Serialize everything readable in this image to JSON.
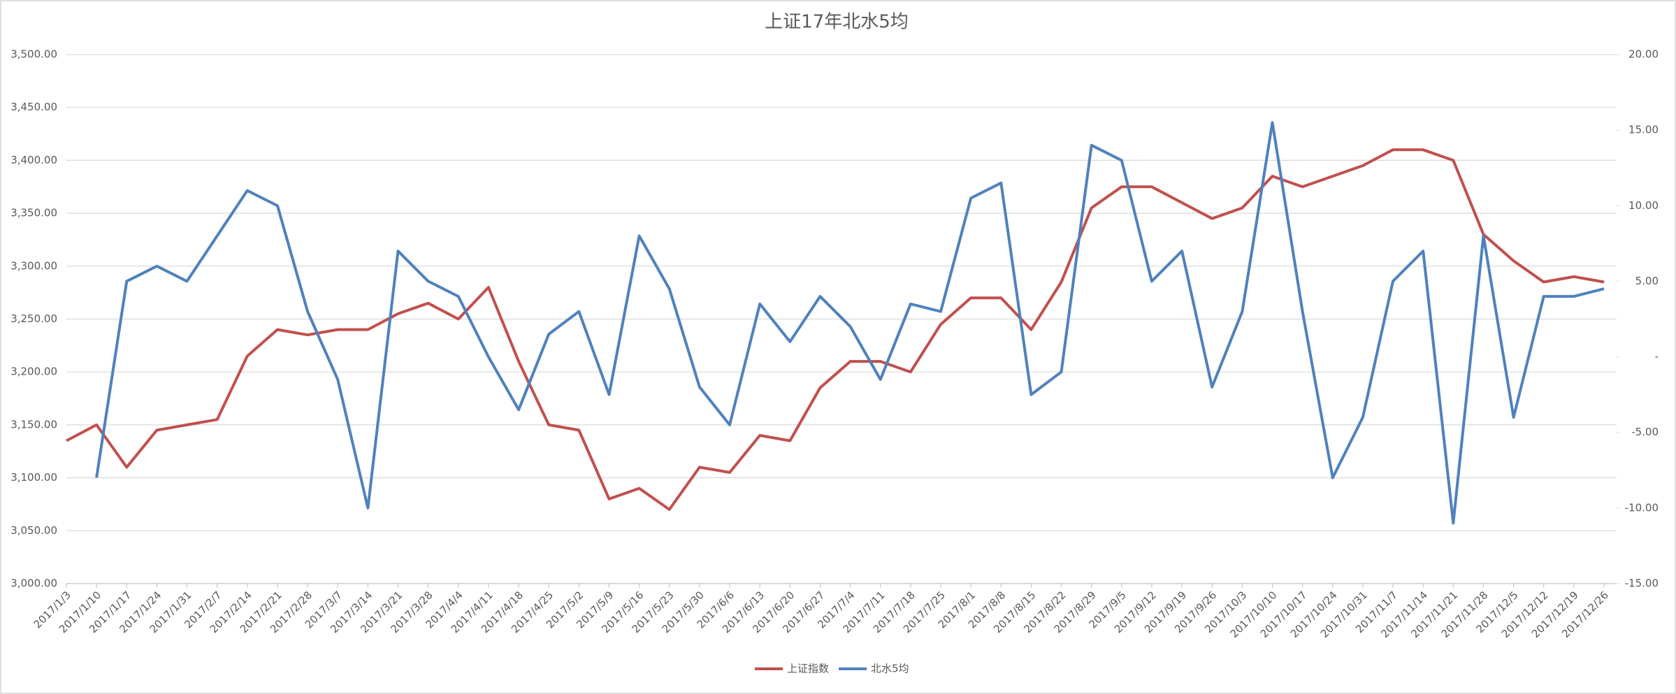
{
  "chart_data": {
    "type": "line",
    "title": "上证17年北水5均",
    "categories": [
      "2017/1/3",
      "2017/1/10",
      "2017/1/17",
      "2017/1/24",
      "2017/1/31",
      "2017/2/7",
      "2017/2/14",
      "2017/2/21",
      "2017/2/28",
      "2017/3/7",
      "2017/3/14",
      "2017/3/21",
      "2017/3/28",
      "2017/4/4",
      "2017/4/11",
      "2017/4/18",
      "2017/4/25",
      "2017/5/2",
      "2017/5/9",
      "2017/5/16",
      "2017/5/23",
      "2017/5/30",
      "2017/6/6",
      "2017/6/13",
      "2017/6/20",
      "2017/6/27",
      "2017/7/4",
      "2017/7/11",
      "2017/7/18",
      "2017/7/25",
      "2017/8/1",
      "2017/8/8",
      "2017/8/15",
      "2017/8/22",
      "2017/8/29",
      "2017/9/5",
      "2017/9/12",
      "2017/9/19",
      "2017/9/26",
      "2017/10/3",
      "2017/10/10",
      "2017/10/17",
      "2017/10/24",
      "2017/10/31",
      "2017/11/7",
      "2017/11/14",
      "2017/11/21",
      "2017/11/28",
      "2017/12/5",
      "2017/12/12",
      "2017/12/19",
      "2017/12/26"
    ],
    "series": [
      {
        "name": "上证指数",
        "color": "#c0504d",
        "values": [
          3135,
          3150,
          3110,
          3145,
          3150,
          3155,
          3215,
          3240,
          3235,
          3240,
          3240,
          3255,
          3265,
          3250,
          3280,
          3210,
          3150,
          3145,
          3080,
          3090,
          3070,
          3110,
          3105,
          3140,
          3135,
          3185,
          3210,
          3210,
          3200,
          3245,
          3270,
          3270,
          3240,
          3285,
          3355,
          3375,
          3375,
          3360,
          3345,
          3355,
          3385,
          3375,
          3385,
          3395,
          3410,
          3410,
          3400,
          3330,
          3305,
          3285,
          3290,
          3285
        ]
      },
      {
        "name": "北水5均",
        "color": "#4f81bd",
        "axis": "y2",
        "values": [
          null,
          -8,
          5,
          6,
          5,
          8,
          11,
          10,
          3,
          -1.5,
          -10,
          7,
          5,
          4,
          0,
          -3.5,
          1.5,
          3,
          -2.5,
          8,
          4.5,
          -2,
          -4.5,
          3.5,
          1,
          4,
          2,
          -1.5,
          3.5,
          3,
          10.5,
          11.5,
          -2.5,
          -1,
          14,
          13,
          5,
          7,
          -2,
          3,
          15.5,
          3,
          -8,
          -4,
          5,
          7,
          -11,
          8,
          -4,
          4,
          4,
          4.5
        ]
      }
    ],
    "ylim": [
      3000,
      3500
    ],
    "yticks": [
      {
        "value": 3000,
        "label": "3,000.00"
      },
      {
        "value": 3050,
        "label": "3,050.00"
      },
      {
        "value": 3100,
        "label": "3,100.00"
      },
      {
        "value": 3150,
        "label": "3,150.00"
      },
      {
        "value": 3200,
        "label": "3,200.00"
      },
      {
        "value": 3250,
        "label": "3,250.00"
      },
      {
        "value": 3300,
        "label": "3,300.00"
      },
      {
        "value": 3350,
        "label": "3,350.00"
      },
      {
        "value": 3400,
        "label": "3,400.00"
      },
      {
        "value": 3450,
        "label": "3,450.00"
      },
      {
        "value": 3500,
        "label": "3,500.00"
      }
    ],
    "y2lim": [
      -15,
      20
    ],
    "y2ticks": [
      {
        "value": -15,
        "label": "-15.00"
      },
      {
        "value": -10,
        "label": "-10.00"
      },
      {
        "value": -5,
        "label": "-5.00"
      },
      {
        "value": 0,
        "label": "-"
      },
      {
        "value": 5,
        "label": "5.00"
      },
      {
        "value": 10,
        "label": "10.00"
      },
      {
        "value": 15,
        "label": "15.00"
      },
      {
        "value": 20,
        "label": "20.00"
      }
    ],
    "grid": true,
    "legend": "bottom"
  }
}
